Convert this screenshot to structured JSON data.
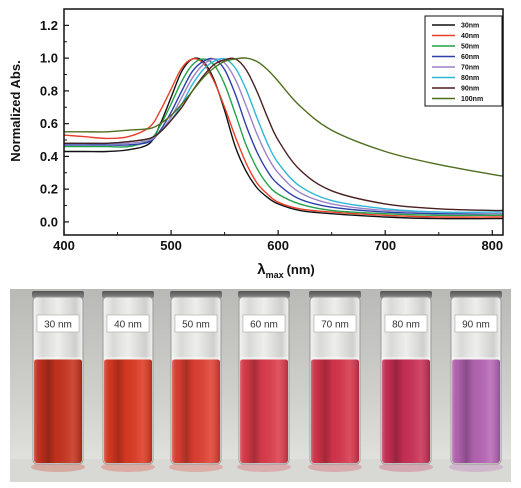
{
  "chart_data": {
    "type": "line",
    "title": "",
    "xlabel_symbol": "λ",
    "xlabel_sub": "max",
    "xlabel_unit": "(nm)",
    "ylabel": "Normalized Abs.",
    "xlim": [
      400,
      810
    ],
    "ylim": [
      -0.08,
      1.3
    ],
    "xticks": [
      "400",
      "500",
      "600",
      "700",
      "800"
    ],
    "xtick_values": [
      400,
      500,
      600,
      700,
      800
    ],
    "yticks": [
      "0.0",
      "0.2",
      "0.4",
      "0.6",
      "0.8",
      "1.0",
      "1.2"
    ],
    "ytick_values": [
      0,
      0.2,
      0.4,
      0.6,
      0.8,
      1.0,
      1.2
    ],
    "legend_position": "top-right",
    "x": [
      400,
      420,
      440,
      460,
      480,
      490,
      500,
      510,
      520,
      530,
      540,
      550,
      560,
      570,
      580,
      590,
      600,
      620,
      650,
      700,
      750,
      800,
      810
    ],
    "series": [
      {
        "name": "30nm",
        "color": "#111111",
        "values": [
          0.43,
          0.43,
          0.43,
          0.44,
          0.48,
          0.6,
          0.76,
          0.92,
          0.995,
          0.98,
          0.87,
          0.68,
          0.46,
          0.31,
          0.21,
          0.15,
          0.11,
          0.07,
          0.05,
          0.03,
          0.02,
          0.02,
          0.02
        ]
      },
      {
        "name": "40nm",
        "color": "#e8402a",
        "values": [
          0.53,
          0.52,
          0.51,
          0.52,
          0.58,
          0.68,
          0.81,
          0.94,
          0.995,
          0.97,
          0.86,
          0.7,
          0.52,
          0.36,
          0.24,
          0.17,
          0.12,
          0.08,
          0.06,
          0.04,
          0.03,
          0.03,
          0.03
        ]
      },
      {
        "name": "50nm",
        "color": "#22a34a",
        "values": [
          0.46,
          0.46,
          0.46,
          0.46,
          0.5,
          0.59,
          0.72,
          0.86,
          0.96,
          0.995,
          0.96,
          0.84,
          0.66,
          0.47,
          0.33,
          0.23,
          0.17,
          0.11,
          0.07,
          0.05,
          0.04,
          0.04,
          0.04
        ]
      },
      {
        "name": "60nm",
        "color": "#2b3fa8",
        "values": [
          0.47,
          0.47,
          0.47,
          0.47,
          0.49,
          0.56,
          0.67,
          0.8,
          0.92,
          0.98,
          0.995,
          0.93,
          0.78,
          0.59,
          0.43,
          0.31,
          0.23,
          0.14,
          0.09,
          0.06,
          0.05,
          0.05,
          0.05
        ]
      },
      {
        "name": "70nm",
        "color": "#9c84c6",
        "values": [
          0.48,
          0.48,
          0.48,
          0.48,
          0.5,
          0.55,
          0.64,
          0.76,
          0.88,
          0.96,
          0.995,
          0.97,
          0.87,
          0.71,
          0.54,
          0.4,
          0.3,
          0.18,
          0.11,
          0.07,
          0.06,
          0.05,
          0.05
        ]
      },
      {
        "name": "80nm",
        "color": "#2fb6d8",
        "values": [
          0.48,
          0.48,
          0.48,
          0.49,
          0.51,
          0.55,
          0.62,
          0.72,
          0.84,
          0.93,
          0.98,
          0.995,
          0.94,
          0.81,
          0.64,
          0.48,
          0.36,
          0.22,
          0.13,
          0.08,
          0.06,
          0.06,
          0.06
        ]
      },
      {
        "name": "90nm",
        "color": "#4a1f1f",
        "values": [
          0.48,
          0.48,
          0.48,
          0.49,
          0.51,
          0.55,
          0.62,
          0.7,
          0.8,
          0.89,
          0.96,
          0.99,
          0.995,
          0.93,
          0.8,
          0.64,
          0.5,
          0.32,
          0.19,
          0.11,
          0.08,
          0.07,
          0.07
        ]
      },
      {
        "name": "100nm",
        "color": "#4f6e1e",
        "values": [
          0.55,
          0.55,
          0.55,
          0.56,
          0.57,
          0.6,
          0.65,
          0.72,
          0.8,
          0.88,
          0.94,
          0.98,
          0.995,
          1.0,
          0.98,
          0.93,
          0.86,
          0.71,
          0.56,
          0.43,
          0.35,
          0.29,
          0.28
        ]
      }
    ]
  },
  "photo": {
    "colors": [
      "#c8321c",
      "#de3a22",
      "#e24032",
      "#df3c4c",
      "#d8354c",
      "#cc2f56",
      "#b866b6"
    ],
    "labels": [
      "30 nm",
      "40 nm",
      "50 nm",
      "60 nm",
      "70 nm",
      "80 nm",
      "90 nm"
    ]
  }
}
